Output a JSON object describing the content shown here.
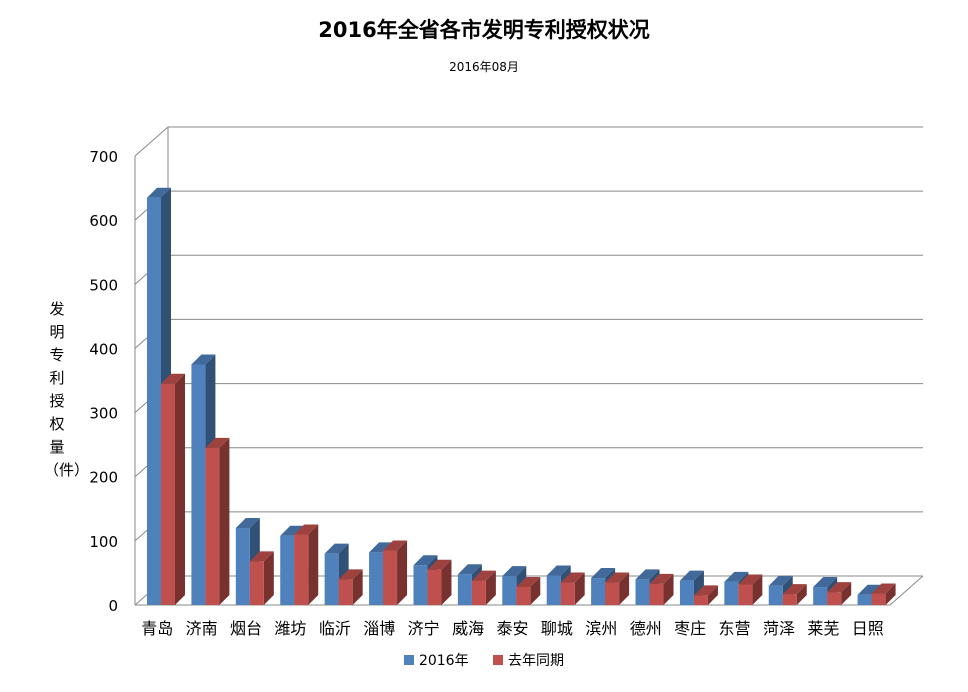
{
  "chart_data": {
    "type": "bar",
    "title": "2016年全省各市发明专利授权状况",
    "subtitle": "2016年08月",
    "ylabel": "发明专利授权量（件）",
    "xlabel": "",
    "ylim": [
      0,
      700
    ],
    "yticks": [
      0,
      100,
      200,
      300,
      400,
      500,
      600,
      700
    ],
    "grid": true,
    "legend_position": "bottom",
    "categories": [
      "青岛",
      "济南",
      "烟台",
      "潍坊",
      "临沂",
      "淄博",
      "济宁",
      "威海",
      "泰安",
      "聊城",
      "滨州",
      "德州",
      "枣庄",
      "东营",
      "菏泽",
      "莱芜",
      "日照"
    ],
    "series": [
      {
        "name": "2016年",
        "color": "#4f81bd",
        "values": [
          635,
          375,
          120,
          108,
          80,
          82,
          62,
          48,
          45,
          46,
          42,
          40,
          38,
          36,
          30,
          28,
          16
        ]
      },
      {
        "name": "去年同期",
        "color": "#c0504d",
        "values": [
          345,
          245,
          68,
          110,
          40,
          85,
          55,
          38,
          28,
          35,
          35,
          33,
          15,
          32,
          17,
          20,
          18
        ]
      }
    ]
  }
}
